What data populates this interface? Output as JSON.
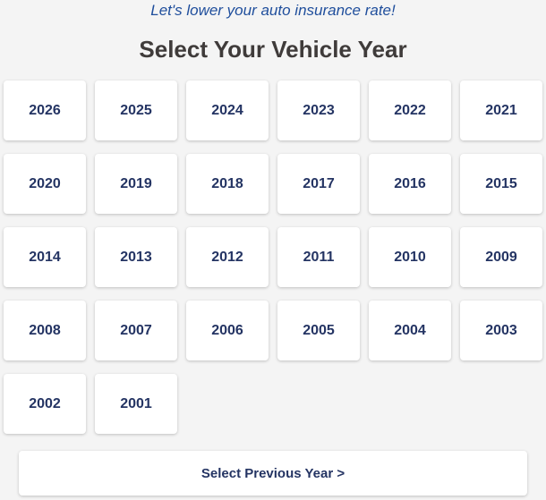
{
  "tagline": "Let's lower your auto insurance rate!",
  "title": "Select Your Vehicle Year",
  "years": [
    "2026",
    "2025",
    "2024",
    "2023",
    "2022",
    "2021",
    "2020",
    "2019",
    "2018",
    "2017",
    "2016",
    "2015",
    "2014",
    "2013",
    "2012",
    "2011",
    "2010",
    "2009",
    "2008",
    "2007",
    "2006",
    "2005",
    "2004",
    "2003",
    "2002",
    "2001"
  ],
  "previous_button": "Select Previous Year >",
  "colors": {
    "accent_text": "#243463",
    "tagline": "#1f4e9c",
    "background": "#f4f4f4"
  }
}
